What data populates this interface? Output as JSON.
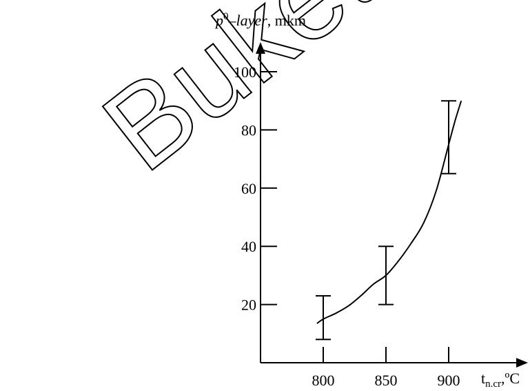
{
  "watermark": "Buket",
  "chart_data": {
    "type": "line",
    "ylabel": {
      "symbol": "p",
      "superscript": "0",
      "dash": "–",
      "word": "layer",
      "unit": ", mkm"
    },
    "xlabel": {
      "main": "t",
      "subscript": "n.cr",
      "unit": ",ºC"
    },
    "x_ticks": [
      800,
      850,
      900
    ],
    "y_ticks": [
      20,
      40,
      60,
      80,
      100
    ],
    "xlim": [
      750,
      910
    ],
    "ylim": [
      0,
      110
    ],
    "grid": false,
    "legend": "none",
    "curve": {
      "x": [
        795,
        800,
        810,
        820,
        830,
        840,
        850,
        860,
        870,
        880,
        890,
        900,
        905,
        910
      ],
      "y": [
        13.5,
        15,
        17,
        19.5,
        23,
        27,
        30,
        35,
        41,
        48,
        59,
        75,
        83,
        90
      ]
    },
    "error_bars": [
      {
        "x": 800,
        "low": 8,
        "high": 23
      },
      {
        "x": 850,
        "low": 20,
        "high": 40
      },
      {
        "x": 900,
        "low": 65,
        "high": 90
      }
    ]
  }
}
